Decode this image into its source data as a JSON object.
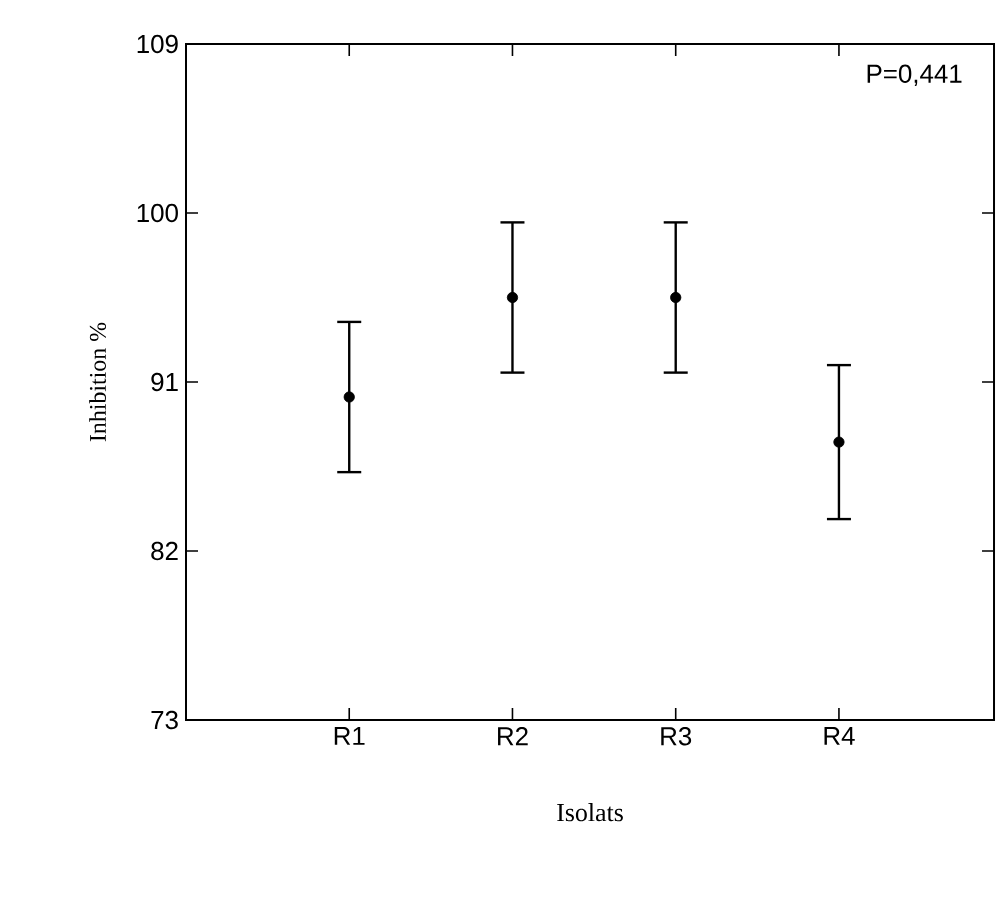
{
  "chart_data": {
    "type": "scatter",
    "xlabel": "Isolats",
    "ylabel": "Inhibition %",
    "categories": [
      "R1",
      "R2",
      "R3",
      "R4"
    ],
    "values": [
      90.2,
      95.5,
      95.5,
      87.8
    ],
    "errors": [
      4,
      4,
      4,
      4.1
    ],
    "color": "#000000",
    "marker": "circle",
    "ylim": [
      73,
      109
    ],
    "yticks": [
      73,
      82,
      91,
      100,
      109
    ],
    "annotations": [
      "P=0,441"
    ]
  }
}
